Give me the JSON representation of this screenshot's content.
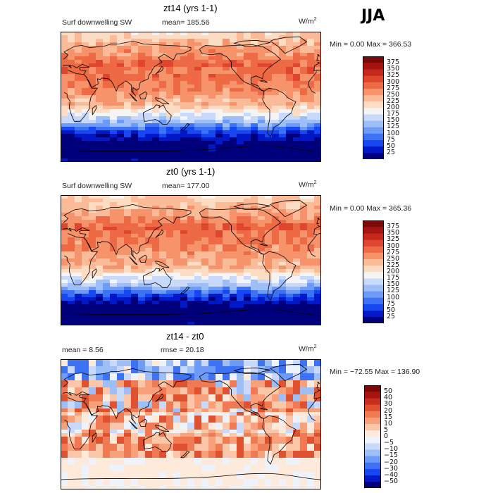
{
  "season": "JJA",
  "palette_abs": [
    "#00007d",
    "#0018c8",
    "#1747f0",
    "#3d72f5",
    "#6e9bf7",
    "#9ebef8",
    "#c8d9fb",
    "#f4f4f4",
    "#fddcc4",
    "#fbbb98",
    "#f6936a",
    "#ee6a45",
    "#e0462d",
    "#c5281b",
    "#a51410",
    "#7d0808"
  ],
  "palette_diff": [
    "#00007d",
    "#0018c8",
    "#1747f0",
    "#3d72f5",
    "#6e9bf7",
    "#9ebef8",
    "#c8d9fb",
    "#eef2fb",
    "#fdeadb",
    "#fcc7a9",
    "#f7a07a",
    "#ef7a53",
    "#e0522f",
    "#c82e1e",
    "#a51410",
    "#7d0808"
  ],
  "panels": {
    "top": {
      "title": "zt14 (yrs 1-1)",
      "variable": "Surf downwelling SW",
      "mean": "mean= 185.56",
      "units_base": "W/m",
      "units_exp": "2",
      "range": "Min =   0.00 Max = 366.53"
    },
    "mid": {
      "title": "zt0 (yrs 1-1)",
      "variable": "Surf downwelling SW",
      "mean": "mean= 177.00",
      "units_base": "W/m",
      "units_exp": "2",
      "range": "Min =   0.00 Max = 365.36"
    },
    "bot": {
      "title": "zt14 - zt0",
      "mean": "mean =   8.56",
      "rmse": "rmse =  20.18",
      "units_base": "W/m",
      "units_exp": "2",
      "range": "Min = −72.55 Max = 136.90"
    }
  },
  "chart_data": [
    {
      "type": "heatmap",
      "title": "zt14 (yrs 1-1)",
      "variable": "Surf downwelling SW",
      "units": "W/m2",
      "mean": 185.56,
      "min": 0.0,
      "max": 366.53,
      "colorbar_ticks": [
        "375",
        "350",
        "325",
        "300",
        "275",
        "250",
        "225",
        "200",
        "175",
        "150",
        "125",
        "100",
        "75",
        "50",
        "25"
      ],
      "colorbar_levels": [
        25,
        50,
        75,
        100,
        125,
        150,
        175,
        200,
        225,
        250,
        275,
        300,
        325,
        350,
        375
      ]
    },
    {
      "type": "heatmap",
      "title": "zt0 (yrs 1-1)",
      "variable": "Surf downwelling SW",
      "units": "W/m2",
      "mean": 177.0,
      "min": 0.0,
      "max": 365.36,
      "colorbar_ticks": [
        "375",
        "350",
        "325",
        "300",
        "275",
        "250",
        "225",
        "200",
        "175",
        "150",
        "125",
        "100",
        "75",
        "50",
        "25"
      ],
      "colorbar_levels": [
        25,
        50,
        75,
        100,
        125,
        150,
        175,
        200,
        225,
        250,
        275,
        300,
        325,
        350,
        375
      ]
    },
    {
      "type": "heatmap",
      "title": "zt14 - zt0",
      "units": "W/m2",
      "mean": 8.56,
      "rmse": 20.18,
      "min": -72.55,
      "max": 136.9,
      "colorbar_ticks": [
        "50",
        "40",
        "30",
        "20",
        "15",
        "10",
        "5",
        "0",
        "−5",
        "−10",
        "−15",
        "−20",
        "−30",
        "−40",
        "−50"
      ],
      "colorbar_levels": [
        -50,
        -40,
        -30,
        -20,
        -15,
        -10,
        -5,
        0,
        5,
        10,
        15,
        20,
        30,
        40,
        50
      ]
    }
  ]
}
